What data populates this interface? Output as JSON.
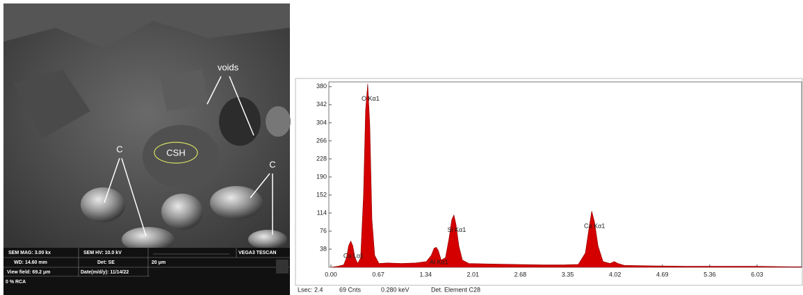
{
  "image_panel": {
    "labels": {
      "voids": "voids",
      "csh": "CSH",
      "c_left": "C",
      "c_right": "C"
    },
    "info": {
      "mag": "SEM MAG: 3.00 kx",
      "hv": "SEM HV: 10.0 kV",
      "brand": "VEGA3 TESCAN",
      "wd": "WD: 14.60 mm",
      "det": "Det: SE",
      "scale": "20 μm",
      "field": "View field: 69.2 μm",
      "date": "Date(m/d/y): 11/14/22",
      "rca": "0 % RCA"
    }
  },
  "chart_data": {
    "type": "area",
    "x": [
      0.0,
      0.1,
      0.18,
      0.22,
      0.25,
      0.28,
      0.31,
      0.34,
      0.38,
      0.42,
      0.46,
      0.49,
      0.52,
      0.55,
      0.58,
      0.62,
      0.68,
      0.8,
      1.0,
      1.2,
      1.35,
      1.42,
      1.46,
      1.49,
      1.52,
      1.56,
      1.62,
      1.67,
      1.71,
      1.74,
      1.77,
      1.81,
      1.86,
      1.95,
      2.2,
      2.6,
      3.0,
      3.3,
      3.5,
      3.6,
      3.65,
      3.69,
      3.73,
      3.78,
      3.85,
      3.95,
      4.01,
      4.06,
      4.15,
      4.5,
      5.0,
      5.5,
      6.0,
      6.5,
      6.66
    ],
    "values": [
      0,
      2,
      5,
      20,
      45,
      55,
      45,
      20,
      8,
      20,
      150,
      330,
      386,
      300,
      100,
      25,
      8,
      9,
      8,
      9,
      12,
      25,
      40,
      42,
      35,
      15,
      20,
      60,
      100,
      110,
      90,
      45,
      15,
      8,
      7,
      6,
      5,
      5,
      6,
      30,
      80,
      118,
      95,
      45,
      12,
      8,
      12,
      8,
      4,
      3,
      2,
      2,
      2,
      1,
      1
    ],
    "color": "#d40000",
    "xlim": [
      0,
      6.66
    ],
    "ylim": [
      0,
      390
    ],
    "xticks": [
      {
        "value": 0,
        "label": "0.00"
      },
      0.67,
      1.34,
      2.01,
      2.68,
      3.35,
      4.02,
      4.69,
      5.36,
      6.03
    ],
    "yticks": [
      38,
      76,
      114,
      152,
      190,
      228,
      266,
      304,
      342,
      380
    ],
    "annotations": [
      {
        "text": "O Kα1",
        "x": 0.52,
        "y": 386
      },
      {
        "text": "Ca Lα1",
        "x": 0.28,
        "y": 55
      },
      {
        "text": "Al Kα1",
        "x": 1.49,
        "y": 42
      },
      {
        "text": "Si Kα1",
        "x": 1.74,
        "y": 110
      },
      {
        "text": "Ca Kα1",
        "x": 3.69,
        "y": 118
      }
    ],
    "footer": [
      "Lsec: 2.4",
      "69 Cnts",
      "0.280 keV",
      "Det. Element C28"
    ]
  }
}
